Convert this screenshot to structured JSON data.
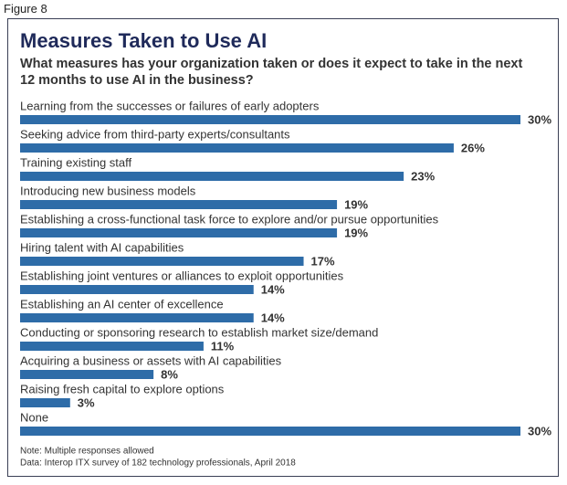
{
  "figure_label": "Figure 8",
  "chart_data": {
    "type": "bar",
    "orientation": "horizontal",
    "title": "Measures Taken to Use AI",
    "subtitle": "What measures has your organization taken or does it expect to take in the next 12 months to use AI in the business?",
    "categories": [
      "Learning from the successes or failures of early adopters",
      "Seeking advice from third-party experts/consultants",
      "Training existing staff",
      "Introducing new business models",
      "Establishing a cross-functional task force to explore and/or pursue opportunities",
      "Hiring talent with AI capabilities",
      "Establishing joint ventures or alliances to exploit opportunities",
      "Establishing an AI center of excellence",
      "Conducting or sponsoring research to establish market size/demand",
      "Acquiring a business or assets with AI capabilities",
      "Raising fresh capital to explore options",
      "None"
    ],
    "values": [
      30,
      26,
      23,
      19,
      19,
      17,
      14,
      14,
      11,
      8,
      3,
      30
    ],
    "value_labels": [
      "30%",
      "26%",
      "23%",
      "19%",
      "19%",
      "17%",
      "14%",
      "14%",
      "11%",
      "8%",
      "3%",
      "30%"
    ],
    "color": "#2e6ca8",
    "notes": [
      "Note: Multiple responses allowed",
      "Data: Interop ITX survey of 182 technology professionals, April 2018"
    ]
  }
}
